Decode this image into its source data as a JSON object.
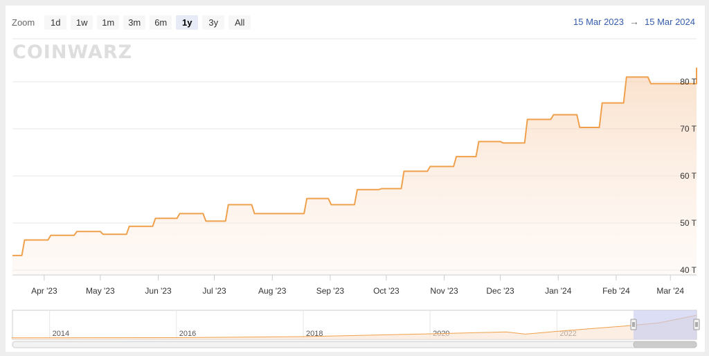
{
  "zoom": {
    "label": "Zoom",
    "buttons": [
      "1d",
      "1w",
      "1m",
      "3m",
      "6m",
      "1y",
      "3y",
      "All"
    ],
    "active": "1y"
  },
  "range": {
    "from": "15 Mar 2023",
    "arrow": "→",
    "to": "15 Mar 2024"
  },
  "watermark": "COINWARZ",
  "colors": {
    "line": "#f0a04b",
    "navigator_selection": "#c8cdf0",
    "range_text": "#335cad"
  },
  "chart_data": {
    "type": "area",
    "x_tick_labels": [
      "Apr '23",
      "May '23",
      "Jun '23",
      "Jul '23",
      "Aug '23",
      "Sep '23",
      "Oct '23",
      "Nov '23",
      "Dec '23",
      "Jan '24",
      "Feb '24",
      "Mar '24"
    ],
    "y_tick_labels": [
      "40 T",
      "50 T",
      "60 T",
      "70 T",
      "80 T"
    ],
    "ylim": [
      40,
      80
    ],
    "step_points": [
      [
        "2023-03-15",
        43.1
      ],
      [
        "2023-03-20",
        46.4
      ],
      [
        "2023-04-03",
        47.4
      ],
      [
        "2023-04-17",
        48.2
      ],
      [
        "2023-05-01",
        47.6
      ],
      [
        "2023-05-15",
        49.3
      ],
      [
        "2023-05-29",
        51.0
      ],
      [
        "2023-06-11",
        52.0
      ],
      [
        "2023-06-25",
        50.4
      ],
      [
        "2023-07-07",
        53.9
      ],
      [
        "2023-07-21",
        52.0
      ],
      [
        "2023-08-18",
        55.2
      ],
      [
        "2023-08-31",
        53.9
      ],
      [
        "2023-09-14",
        57.1
      ],
      [
        "2023-09-27",
        57.3
      ],
      [
        "2023-10-09",
        61.0
      ],
      [
        "2023-10-23",
        62.0
      ],
      [
        "2023-11-06",
        64.1
      ],
      [
        "2023-11-18",
        67.3
      ],
      [
        "2023-12-01",
        67.0
      ],
      [
        "2023-12-14",
        72.0
      ],
      [
        "2023-12-28",
        73.0
      ],
      [
        "2024-01-11",
        70.3
      ],
      [
        "2024-01-23",
        75.5
      ],
      [
        "2024-02-05",
        81.0
      ],
      [
        "2024-02-18",
        79.6
      ],
      [
        "2024-03-05",
        79.6
      ],
      [
        "2024-03-15",
        83.0
      ]
    ],
    "navigator": {
      "x_tick_labels": [
        "2014",
        "2016",
        "2018",
        "2020",
        "2022"
      ]
    }
  }
}
